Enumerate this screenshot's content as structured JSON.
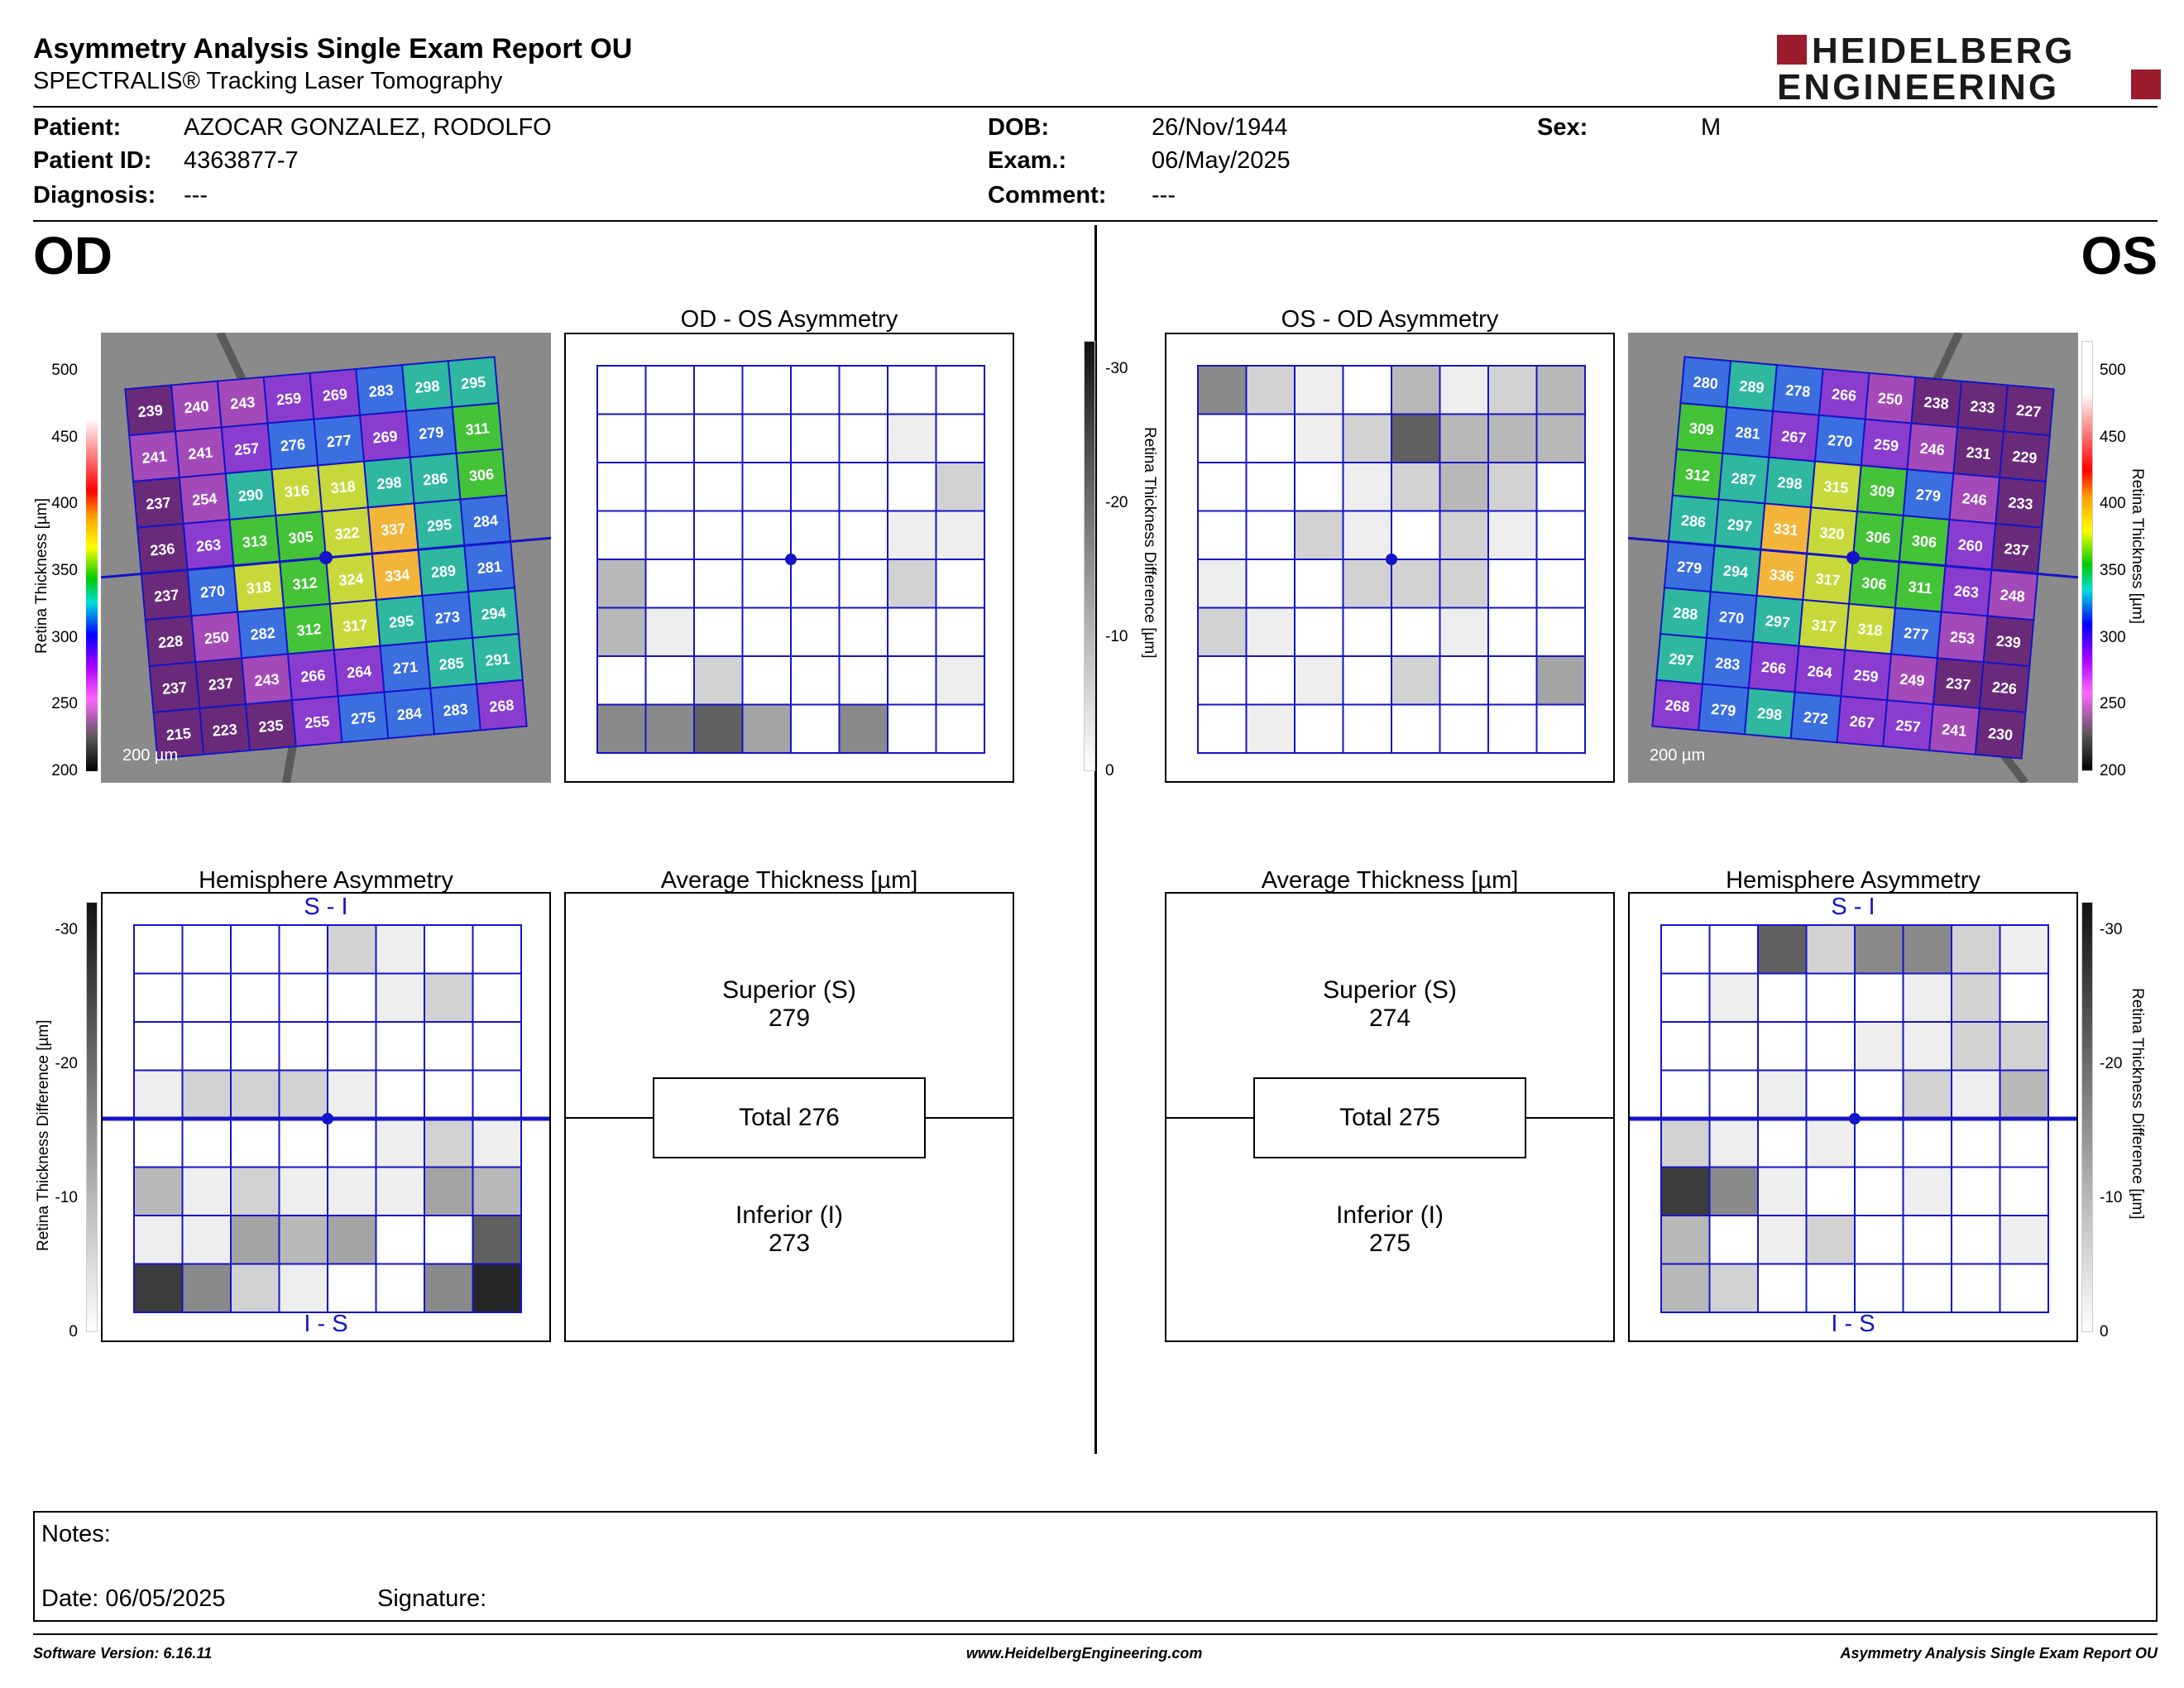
{
  "header": {
    "title": "Asymmetry Analysis Single Exam Report OU",
    "subtitle": "SPECTRALIS® Tracking Laser Tomography",
    "logo_line1": "HEIDELBERG",
    "logo_line2": "ENGINEERING",
    "brand_color": "#9b1c2c"
  },
  "patient": {
    "patient_label": "Patient:",
    "patient_value": "AZOCAR GONZALEZ, RODOLFO",
    "id_label": "Patient ID:",
    "id_value": "4363877-7",
    "diagnosis_label": "Diagnosis:",
    "diagnosis_value": "---",
    "dob_label": "DOB:",
    "dob_value": "26/Nov/1944",
    "exam_label": "Exam.:",
    "exam_value": "06/May/2025",
    "comment_label": "Comment:",
    "comment_value": "---",
    "sex_label": "Sex:",
    "sex_value": "M"
  },
  "od": {
    "eye_label": "OD",
    "asym_title": "OD - OS Asymmetry",
    "hemi_title": "Hemisphere Asymmetry",
    "avg_title": "Average Thickness [µm]",
    "superior_label": "Superior (S)",
    "superior_value": "279",
    "total_label": "Total 276",
    "inferior_label": "Inferior (I)",
    "inferior_value": "273",
    "scale_bar": "200 µm",
    "si_top": "S - I",
    "si_bottom": "I - S",
    "thickness_grid": [
      [
        239,
        240,
        243,
        259,
        269,
        283,
        298,
        295
      ],
      [
        241,
        241,
        257,
        276,
        277,
        269,
        279,
        311
      ],
      [
        237,
        254,
        290,
        316,
        318,
        298,
        286,
        306
      ],
      [
        236,
        263,
        313,
        305,
        322,
        337,
        295,
        284
      ],
      [
        237,
        270,
        318,
        312,
        324,
        334,
        289,
        281
      ],
      [
        228,
        250,
        282,
        312,
        317,
        295,
        273,
        294
      ],
      [
        237,
        237,
        243,
        266,
        264,
        271,
        285,
        291
      ],
      [
        215,
        223,
        235,
        255,
        275,
        284,
        283,
        268
      ]
    ],
    "asym_shades": [
      [
        0,
        0,
        0,
        0,
        0,
        0,
        0,
        0
      ],
      [
        0,
        0,
        0,
        0,
        0,
        0,
        1,
        0
      ],
      [
        0,
        0,
        0,
        0,
        0,
        0,
        0,
        2
      ],
      [
        0,
        0,
        0,
        0,
        0,
        0,
        1,
        1
      ],
      [
        3,
        0,
        0,
        0,
        0,
        0,
        2,
        0
      ],
      [
        3,
        1,
        0,
        0,
        0,
        0,
        0,
        0
      ],
      [
        0,
        0,
        2,
        0,
        0,
        0,
        0,
        1
      ],
      [
        5,
        5,
        6,
        4,
        0,
        5,
        0,
        0
      ]
    ],
    "hemi_shades": [
      [
        0,
        0,
        0,
        0,
        2,
        1,
        0,
        0
      ],
      [
        0,
        0,
        0,
        0,
        0,
        1,
        2,
        0
      ],
      [
        0,
        0,
        0,
        0,
        0,
        0,
        0,
        0
      ],
      [
        1,
        2,
        2,
        2,
        1,
        0,
        0,
        0
      ],
      [
        0,
        0,
        0,
        0,
        0,
        1,
        2,
        1
      ],
      [
        3,
        1,
        2,
        1,
        1,
        1,
        4,
        3
      ],
      [
        1,
        1,
        4,
        3,
        4,
        0,
        0,
        6
      ],
      [
        7,
        5,
        2,
        1,
        0,
        0,
        5,
        8
      ]
    ]
  },
  "os": {
    "eye_label": "OS",
    "asym_title": "OS - OD Asymmetry",
    "hemi_title": "Hemisphere Asymmetry",
    "avg_title": "Average Thickness [µm]",
    "superior_label": "Superior (S)",
    "superior_value": "274",
    "total_label": "Total 275",
    "inferior_label": "Inferior (I)",
    "inferior_value": "275",
    "scale_bar": "200 µm",
    "si_top": "S - I",
    "si_bottom": "I - S",
    "thickness_grid": [
      [
        280,
        289,
        278,
        266,
        250,
        238,
        233,
        227
      ],
      [
        309,
        281,
        267,
        270,
        259,
        246,
        231,
        229
      ],
      [
        312,
        287,
        298,
        315,
        309,
        279,
        246,
        233
      ],
      [
        286,
        297,
        331,
        320,
        306,
        306,
        260,
        237
      ],
      [
        279,
        294,
        336,
        317,
        306,
        311,
        263,
        248
      ],
      [
        288,
        270,
        297,
        317,
        318,
        277,
        253,
        239
      ],
      [
        297,
        283,
        266,
        264,
        259,
        249,
        237,
        226
      ],
      [
        268,
        279,
        298,
        272,
        267,
        257,
        241,
        230
      ]
    ],
    "asym_shades": [
      [
        5,
        2,
        1,
        0,
        3,
        1,
        2,
        3
      ],
      [
        0,
        0,
        1,
        2,
        6,
        3,
        3,
        3
      ],
      [
        0,
        0,
        0,
        1,
        2,
        3,
        2,
        0
      ],
      [
        0,
        0,
        2,
        1,
        0,
        2,
        1,
        0
      ],
      [
        1,
        0,
        0,
        2,
        2,
        2,
        0,
        0
      ],
      [
        2,
        1,
        0,
        0,
        0,
        1,
        0,
        0
      ],
      [
        0,
        0,
        1,
        0,
        2,
        0,
        0,
        4
      ],
      [
        0,
        1,
        0,
        0,
        0,
        0,
        0,
        0
      ]
    ],
    "hemi_shades": [
      [
        0,
        0,
        6,
        2,
        5,
        5,
        2,
        1
      ],
      [
        0,
        1,
        0,
        0,
        0,
        1,
        2,
        0
      ],
      [
        0,
        0,
        0,
        0,
        1,
        1,
        2,
        2
      ],
      [
        0,
        0,
        1,
        0,
        0,
        2,
        1,
        3
      ],
      [
        2,
        1,
        0,
        1,
        0,
        0,
        0,
        0
      ],
      [
        7,
        5,
        1,
        0,
        0,
        1,
        0,
        0
      ],
      [
        3,
        0,
        1,
        2,
        0,
        0,
        0,
        1
      ],
      [
        3,
        2,
        0,
        0,
        0,
        0,
        0,
        0
      ]
    ]
  },
  "thickness_scale": {
    "label": "Retina  Thickness [µm]",
    "ticks": [
      "500",
      "450",
      "400",
      "350",
      "300",
      "250",
      "200"
    ]
  },
  "difference_scale": {
    "label": "Retina Thickness Difference [µm]",
    "ticks": [
      "-30",
      "-20",
      "-10",
      "0"
    ]
  },
  "notes": {
    "notes_label": "Notes:",
    "date_label": "Date: 06/05/2025",
    "signature_label": "Signature:"
  },
  "footer": {
    "software": "Software Version: 6.16.11",
    "website": "www.HeidelbergEngineering.com",
    "report": "Asymmetry Analysis Single Exam Report OU"
  }
}
